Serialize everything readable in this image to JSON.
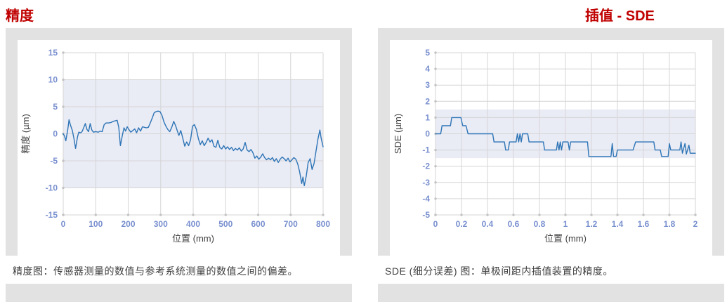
{
  "titles": {
    "left": "精度",
    "right": "插值 - SDE"
  },
  "colors": {
    "title_red": "#c00000",
    "panel_gray": "#e2e2e2",
    "band_fill": "#e9ebf5",
    "gridline": "#d6d6d6",
    "tick_dot": "#c3c3c3",
    "line_blue": "#2e75b6",
    "tick_label": "#7990cf",
    "axis_text": "#3f3f3f"
  },
  "panels": [
    {
      "id": "accuracy",
      "caption": "精度图：传感器测量的数值与参考系统测量的数值之间的偏差。"
    },
    {
      "id": "sde",
      "caption": "SDE (细分误差) 图：单极间距内插值装置的精度。"
    }
  ],
  "chart_data": [
    {
      "type": "line",
      "title": "精度",
      "xlabel": "位置 (mm)",
      "ylabel": "精度 (µm)",
      "xlim": [
        0,
        800
      ],
      "ylim": [
        -15,
        15
      ],
      "xticks": [
        0,
        100,
        200,
        300,
        400,
        500,
        600,
        700,
        800
      ],
      "yticks": [
        15,
        10,
        5,
        0,
        -5,
        -10,
        -15
      ],
      "grid": true,
      "legend": "none",
      "tolerance_band": {
        "min": -10,
        "max": 10
      },
      "series": [
        {
          "name": "accuracy-deviation",
          "points": [
            [
              0,
              0
            ],
            [
              4,
              -0.4
            ],
            [
              8,
              -1.3
            ],
            [
              14,
              0.8
            ],
            [
              18,
              2.6
            ],
            [
              23,
              1.5
            ],
            [
              28,
              0.6
            ],
            [
              33,
              -0.9
            ],
            [
              38,
              -2.7
            ],
            [
              44,
              -0.6
            ],
            [
              48,
              0.3
            ],
            [
              54,
              0.2
            ],
            [
              58,
              0.4
            ],
            [
              63,
              1.1
            ],
            [
              68,
              1.9
            ],
            [
              73,
              0.8
            ],
            [
              78,
              0.4
            ],
            [
              83,
              1.9
            ],
            [
              88,
              0.7
            ],
            [
              93,
              0.3
            ],
            [
              100,
              0.4
            ],
            [
              108,
              0.3
            ],
            [
              114,
              0.5
            ],
            [
              120,
              0.4
            ],
            [
              126,
              1.7
            ],
            [
              132,
              2.0
            ],
            [
              140,
              2.0
            ],
            [
              148,
              2.1
            ],
            [
              154,
              2.3
            ],
            [
              160,
              2.4
            ],
            [
              166,
              2.5
            ],
            [
              171,
              1.2
            ],
            [
              176,
              -2.2
            ],
            [
              182,
              -0.3
            ],
            [
              187,
              1.1
            ],
            [
              192,
              0.5
            ],
            [
              197,
              1.3
            ],
            [
              202,
              0.8
            ],
            [
              208,
              0.3
            ],
            [
              214,
              0.6
            ],
            [
              220,
              0.9
            ],
            [
              226,
              0.2
            ],
            [
              232,
              1.1
            ],
            [
              238,
              0.5
            ],
            [
              244,
              1.3
            ],
            [
              250,
              1.2
            ],
            [
              256,
              1.1
            ],
            [
              262,
              1.2
            ],
            [
              268,
              2.0
            ],
            [
              274,
              2.9
            ],
            [
              280,
              3.9
            ],
            [
              286,
              4.1
            ],
            [
              292,
              4.2
            ],
            [
              298,
              4.1
            ],
            [
              304,
              3.4
            ],
            [
              310,
              2.2
            ],
            [
              316,
              1.4
            ],
            [
              322,
              0.8
            ],
            [
              328,
              0.4
            ],
            [
              334,
              1.2
            ],
            [
              340,
              2.3
            ],
            [
              346,
              1.5
            ],
            [
              352,
              0.4
            ],
            [
              356,
              -0.3
            ],
            [
              362,
              0.6
            ],
            [
              368,
              -0.8
            ],
            [
              374,
              -2.3
            ],
            [
              380,
              -1.5
            ],
            [
              386,
              -2.2
            ],
            [
              392,
              -1.1
            ],
            [
              398,
              1.4
            ],
            [
              404,
              1.7
            ],
            [
              410,
              0.8
            ],
            [
              416,
              -0.9
            ],
            [
              422,
              -2.0
            ],
            [
              428,
              -1.3
            ],
            [
              434,
              -2.2
            ],
            [
              440,
              -1.6
            ],
            [
              446,
              -0.8
            ],
            [
              452,
              -1.5
            ],
            [
              458,
              -1.1
            ],
            [
              464,
              -2.3
            ],
            [
              470,
              -2.5
            ],
            [
              476,
              -1.2
            ],
            [
              482,
              -2.5
            ],
            [
              488,
              -2.8
            ],
            [
              494,
              -2.2
            ],
            [
              500,
              -2.8
            ],
            [
              506,
              -2.4
            ],
            [
              512,
              -2.9
            ],
            [
              518,
              -2.5
            ],
            [
              524,
              -3.1
            ],
            [
              530,
              -2.7
            ],
            [
              536,
              -3.0
            ],
            [
              542,
              -2.6
            ],
            [
              548,
              -3.2
            ],
            [
              554,
              -2.8
            ],
            [
              560,
              -1.6
            ],
            [
              566,
              -3.0
            ],
            [
              572,
              -3.3
            ],
            [
              578,
              -2.9
            ],
            [
              584,
              -3.5
            ],
            [
              590,
              -4.5
            ],
            [
              596,
              -4.1
            ],
            [
              602,
              -4.7
            ],
            [
              608,
              -4.3
            ],
            [
              614,
              -3.7
            ],
            [
              620,
              -4.4
            ],
            [
              626,
              -4.8
            ],
            [
              632,
              -4.5
            ],
            [
              638,
              -4.8
            ],
            [
              644,
              -4.4
            ],
            [
              650,
              -5.1
            ],
            [
              656,
              -4.6
            ],
            [
              662,
              -5.3
            ],
            [
              668,
              -4.7
            ],
            [
              674,
              -4.3
            ],
            [
              680,
              -4.6
            ],
            [
              686,
              -5.0
            ],
            [
              692,
              -4.5
            ],
            [
              698,
              -5.2
            ],
            [
              704,
              -4.8
            ],
            [
              710,
              -4.4
            ],
            [
              716,
              -4.7
            ],
            [
              722,
              -5.6
            ],
            [
              728,
              -7.1
            ],
            [
              734,
              -9.2
            ],
            [
              738,
              -8.0
            ],
            [
              742,
              -9.6
            ],
            [
              748,
              -7.8
            ],
            [
              754,
              -5.3
            ],
            [
              760,
              -4.6
            ],
            [
              766,
              -6.6
            ],
            [
              772,
              -5.5
            ],
            [
              778,
              -3.3
            ],
            [
              784,
              -1.0
            ],
            [
              790,
              0.7
            ],
            [
              794,
              -0.8
            ],
            [
              800,
              -2.4
            ]
          ]
        }
      ]
    },
    {
      "type": "line",
      "title": "插值 - SDE",
      "xlabel": "位置 (mm)",
      "ylabel": "SDE (µm)",
      "xlim": [
        0,
        2
      ],
      "ylim": [
        -5,
        5
      ],
      "xticks": [
        0,
        0.2,
        0.4,
        0.6,
        0.8,
        1,
        1.2,
        1.4,
        1.6,
        1.8,
        2
      ],
      "yticks": [
        5,
        4,
        3,
        2,
        1,
        0,
        -1,
        -2,
        -3,
        -4,
        -5
      ],
      "grid": true,
      "legend": "none",
      "tolerance_band": {
        "min": -1.5,
        "max": 1.5
      },
      "series": [
        {
          "name": "subdivision-error",
          "points": [
            [
              0,
              0
            ],
            [
              0.04,
              0
            ],
            [
              0.05,
              0.5
            ],
            [
              0.115,
              0.5
            ],
            [
              0.125,
              1
            ],
            [
              0.195,
              1
            ],
            [
              0.21,
              0.5
            ],
            [
              0.235,
              0.5
            ],
            [
              0.25,
              0
            ],
            [
              0.44,
              0
            ],
            [
              0.45,
              -0.5
            ],
            [
              0.53,
              -0.5
            ],
            [
              0.54,
              -1
            ],
            [
              0.56,
              -1
            ],
            [
              0.57,
              -0.5
            ],
            [
              0.62,
              -0.5
            ],
            [
              0.63,
              0
            ],
            [
              0.64,
              -0.5
            ],
            [
              0.65,
              0
            ],
            [
              0.66,
              -0.5
            ],
            [
              0.67,
              0
            ],
            [
              0.71,
              0
            ],
            [
              0.72,
              -0.5
            ],
            [
              0.83,
              -0.5
            ],
            [
              0.84,
              -1
            ],
            [
              0.93,
              -1
            ],
            [
              0.94,
              -0.5
            ],
            [
              0.95,
              -1
            ],
            [
              0.96,
              -0.5
            ],
            [
              0.97,
              -1
            ],
            [
              0.98,
              -0.5
            ],
            [
              1.02,
              -0.5
            ],
            [
              1.03,
              -1
            ],
            [
              1.04,
              -0.5
            ],
            [
              1.17,
              -0.5
            ],
            [
              1.18,
              -1.4
            ],
            [
              1.35,
              -1.4
            ],
            [
              1.36,
              -0.6
            ],
            [
              1.37,
              -1.4
            ],
            [
              1.39,
              -1.4
            ],
            [
              1.4,
              -1.0
            ],
            [
              1.52,
              -1.0
            ],
            [
              1.54,
              -0.5
            ],
            [
              1.68,
              -0.5
            ],
            [
              1.69,
              -1.0
            ],
            [
              1.73,
              -1.0
            ],
            [
              1.74,
              -1.4
            ],
            [
              1.79,
              -1.4
            ],
            [
              1.8,
              -0.6
            ],
            [
              1.81,
              -1.0
            ],
            [
              1.88,
              -1.0
            ],
            [
              1.89,
              -0.5
            ],
            [
              1.9,
              -1.2
            ],
            [
              1.92,
              -0.6
            ],
            [
              1.93,
              -1.25
            ],
            [
              1.95,
              -0.7
            ],
            [
              1.96,
              -1.2
            ],
            [
              2,
              -1.2
            ]
          ]
        }
      ]
    }
  ]
}
